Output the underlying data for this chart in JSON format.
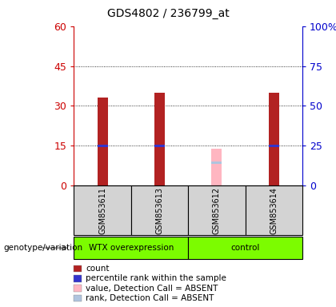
{
  "title": "GDS4802 / 236799_at",
  "samples": [
    "GSM853611",
    "GSM853613",
    "GSM853612",
    "GSM853614"
  ],
  "groups": [
    "WTX overexpression",
    "WTX overexpression",
    "control",
    "control"
  ],
  "count_values": [
    33,
    35,
    null,
    35
  ],
  "rank_values": [
    25,
    25,
    null,
    25
  ],
  "absent_value_values": [
    null,
    null,
    14,
    null
  ],
  "absent_rank_values": [
    null,
    null,
    14.5,
    null
  ],
  "ylim_left": [
    0,
    60
  ],
  "ylim_right": [
    0,
    100
  ],
  "yticks_left": [
    0,
    15,
    30,
    45,
    60
  ],
  "yticks_right": [
    0,
    25,
    50,
    75,
    100
  ],
  "yticklabels_left": [
    "0",
    "15",
    "30",
    "45",
    "60"
  ],
  "yticklabels_right": [
    "0",
    "25",
    "50",
    "75",
    "100%"
  ],
  "bar_positions": [
    1,
    2,
    3,
    4
  ],
  "count_color": "#b22222",
  "rank_color": "#3333cc",
  "absent_value_color": "#ffb6c1",
  "absent_rank_color": "#b0c4de",
  "group_bg_color": "#7cfc00",
  "sample_bg_color": "#d3d3d3",
  "legend_labels": [
    "count",
    "percentile rank within the sample",
    "value, Detection Call = ABSENT",
    "rank, Detection Call = ABSENT"
  ],
  "legend_colors": [
    "#b22222",
    "#3333cc",
    "#ffb6c1",
    "#b0c4de"
  ],
  "left_tick_color": "#cc0000",
  "right_tick_color": "#0000cc",
  "genotype_label": "genotype/variation",
  "arrow_color": "#909090"
}
